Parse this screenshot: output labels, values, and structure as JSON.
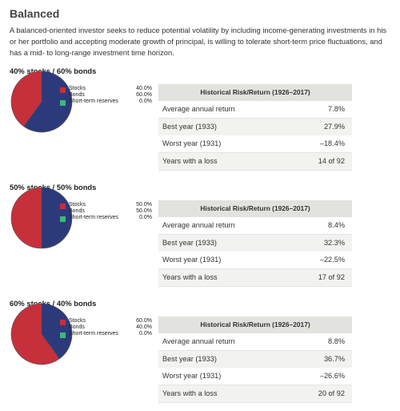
{
  "title": "Balanced",
  "description": "A balanced-oriented investor seeks to reduce potential volatility by including income-generating investments in his or her portfolio and accepting moderate growth of principal, is willing to tolerate short-term price fluctuations, and has a mid- to long-range investment time horizon.",
  "sections": [
    {
      "heading": "40% stocks / 60% bonds",
      "pie": {
        "labels": [
          "Stocks",
          "Bonds",
          "Short-term reserves"
        ],
        "values": [
          40,
          60,
          0
        ],
        "value_labels": [
          "40.0%",
          "60.0%",
          "0.0%"
        ],
        "colors": [
          "#c5303b",
          "#2c3a7c",
          "#3cb878"
        ]
      },
      "table": {
        "header": "Historical Risk/Return (1926–2017)",
        "rows": [
          [
            "Average annual return",
            "7.8%"
          ],
          [
            "Best year (1933)",
            "27.9%"
          ],
          [
            "Worst year (1931)",
            "–18.4%"
          ],
          [
            "Years with a loss",
            "14 of 92"
          ]
        ]
      }
    },
    {
      "heading": "50% stocks / 50% bonds",
      "pie": {
        "labels": [
          "Stocks",
          "Bonds",
          "Short-term reserves"
        ],
        "values": [
          50,
          50,
          0
        ],
        "value_labels": [
          "50.0%",
          "50.0%",
          "0.0%"
        ],
        "colors": [
          "#c5303b",
          "#2c3a7c",
          "#3cb878"
        ]
      },
      "table": {
        "header": "Historical Risk/Return (1926–2017)",
        "rows": [
          [
            "Average annual return",
            "8.4%"
          ],
          [
            "Best year (1933)",
            "32.3%"
          ],
          [
            "Worst year (1931)",
            "–22.5%"
          ],
          [
            "Years with a loss",
            "17 of 92"
          ]
        ]
      }
    },
    {
      "heading": "60% stocks / 40% bonds",
      "pie": {
        "labels": [
          "Stocks",
          "Bonds",
          "Short-term reserves"
        ],
        "values": [
          60,
          40,
          0
        ],
        "value_labels": [
          "60.0%",
          "40.0%",
          "0.0%"
        ],
        "colors": [
          "#c5303b",
          "#2c3a7c",
          "#3cb878"
        ]
      },
      "table": {
        "header": "Historical Risk/Return (1926–2017)",
        "rows": [
          [
            "Average annual return",
            "8.8%"
          ],
          [
            "Best year (1933)",
            "36.7%"
          ],
          [
            "Worst year (1931)",
            "–26.6%"
          ],
          [
            "Years with a loss",
            "20 of 92"
          ]
        ]
      }
    }
  ]
}
